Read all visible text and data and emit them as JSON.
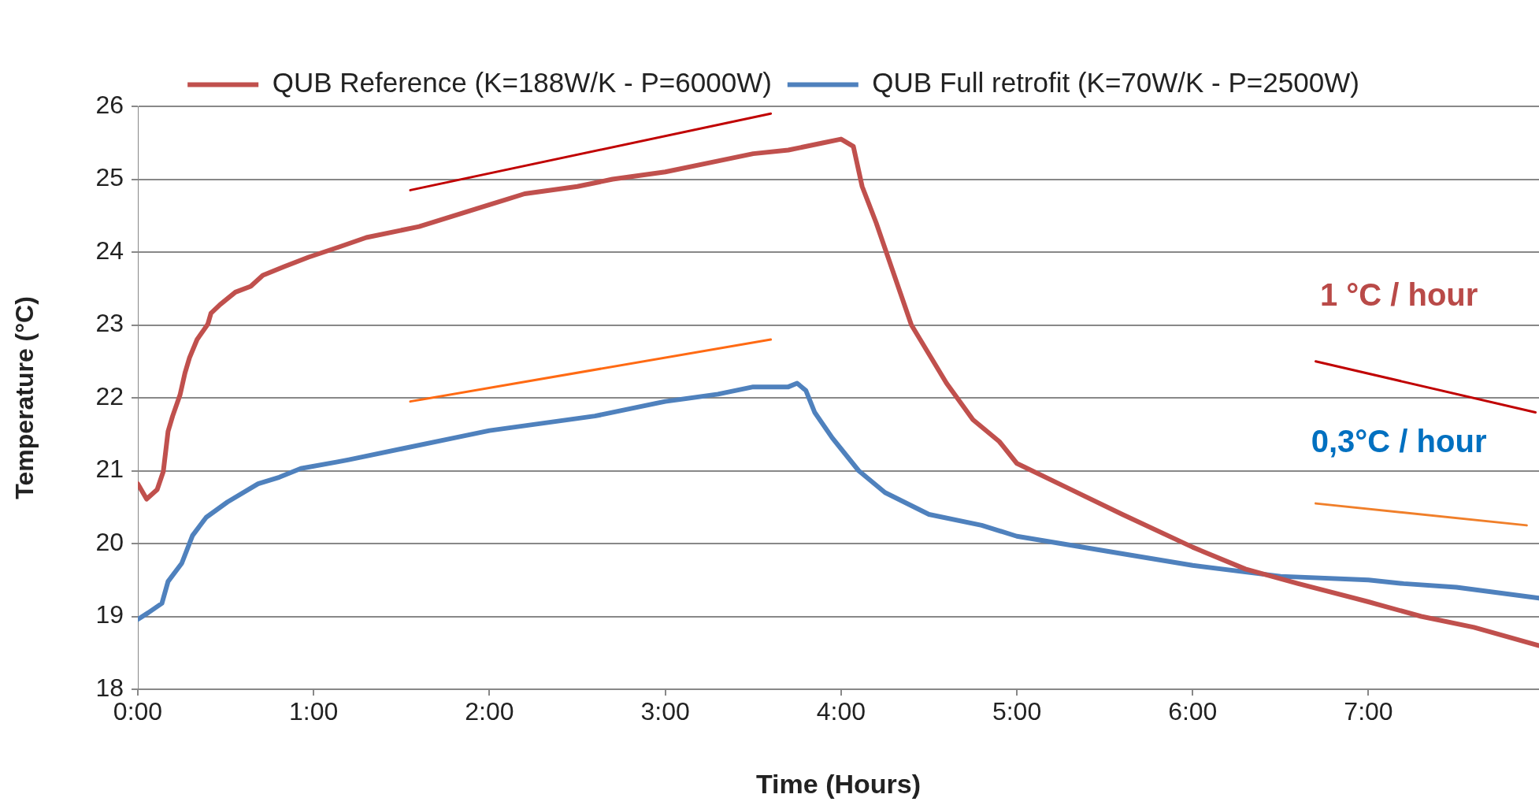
{
  "chart_data": {
    "type": "line",
    "xlabel": "Time (Hours)",
    "ylabel": "Temperature (°C)",
    "xlim": [
      0,
      7.97
    ],
    "xticks": [
      {
        "value": 0,
        "label": "0:00"
      },
      {
        "value": 1,
        "label": "1:00"
      },
      {
        "value": 2,
        "label": "2:00"
      },
      {
        "value": 3,
        "label": "3:00"
      },
      {
        "value": 4,
        "label": "4:00"
      },
      {
        "value": 5,
        "label": "5:00"
      },
      {
        "value": 6,
        "label": "6:00"
      },
      {
        "value": 7,
        "label": "7:00"
      }
    ],
    "ylim": [
      18,
      26
    ],
    "yticks": [
      18,
      19,
      20,
      21,
      22,
      23,
      24,
      25,
      26
    ],
    "grid": "y",
    "legend": "top",
    "marker": "none",
    "line_style": "solid",
    "series": [
      {
        "name": "QUB Reference (K=188W/K - P=6000W)",
        "color": "#c0504d",
        "x": [
          0,
          0.05,
          0.11,
          0.145,
          0.172,
          0.198,
          0.24,
          0.268,
          0.294,
          0.337,
          0.398,
          0.416,
          0.468,
          0.555,
          0.642,
          0.711,
          0.832,
          0.971,
          1.145,
          1.3,
          1.6,
          2.0,
          2.2,
          2.5,
          2.7,
          3.0,
          3.3,
          3.5,
          3.7,
          3.9,
          4.0,
          4.07,
          4.12,
          4.2,
          4.3,
          4.4,
          4.5,
          4.6,
          4.75,
          4.9,
          5.0,
          5.3,
          5.6,
          6.0,
          6.3,
          6.6,
          7.0,
          7.3,
          7.6,
          7.97
        ],
        "values": [
          20.82,
          20.61,
          20.74,
          20.99,
          21.54,
          21.75,
          22.04,
          22.34,
          22.55,
          22.8,
          23.01,
          23.16,
          23.28,
          23.45,
          23.53,
          23.68,
          23.8,
          23.93,
          24.07,
          24.2,
          24.35,
          24.65,
          24.8,
          24.9,
          25.0,
          25.1,
          25.25,
          25.35,
          25.4,
          25.5,
          25.55,
          25.45,
          24.9,
          24.4,
          23.7,
          23.0,
          22.6,
          22.2,
          21.7,
          21.4,
          21.1,
          20.75,
          20.4,
          19.95,
          19.65,
          19.45,
          19.2,
          19.0,
          18.85,
          18.6
        ]
      },
      {
        "name": "QUB Full retrofit (K=70W/K - P=2500W)",
        "color": "#4f81bd",
        "x": [
          0,
          0.059,
          0.137,
          0.172,
          0.25,
          0.311,
          0.389,
          0.51,
          0.684,
          0.805,
          0.927,
          1.135,
          1.2,
          1.5,
          1.8,
          2.0,
          2.3,
          2.6,
          3.0,
          3.3,
          3.5,
          3.7,
          3.75,
          3.8,
          3.85,
          3.95,
          4.1,
          4.25,
          4.5,
          4.8,
          5.0,
          5.5,
          6.0,
          6.5,
          7.0,
          7.2,
          7.5,
          7.97
        ],
        "values": [
          18.96,
          19.05,
          19.18,
          19.48,
          19.73,
          20.11,
          20.36,
          20.57,
          20.82,
          20.91,
          21.03,
          21.12,
          21.15,
          21.3,
          21.45,
          21.55,
          21.65,
          21.75,
          21.95,
          22.05,
          22.15,
          22.15,
          22.2,
          22.1,
          21.8,
          21.45,
          21.0,
          20.7,
          20.4,
          20.25,
          20.1,
          19.9,
          19.7,
          19.55,
          19.5,
          19.45,
          19.4,
          19.25
        ]
      },
      {
        "color": "#c00000",
        "x": [
          1.55,
          3.6
        ],
        "values": [
          24.85,
          25.9
        ]
      },
      {
        "color": "#ff6a13",
        "x": [
          1.55,
          3.6
        ],
        "values": [
          21.95,
          22.8
        ]
      },
      {
        "color": "#c00000",
        "x": [
          6.7,
          7.95
        ],
        "values": [
          22.5,
          21.8
        ]
      },
      {
        "color": "#f07f2a",
        "x": [
          6.7,
          7.9
        ],
        "values": [
          20.55,
          20.25
        ]
      }
    ],
    "annotations": [
      "1 °C / hour",
      "0,3°C / hour"
    ]
  }
}
